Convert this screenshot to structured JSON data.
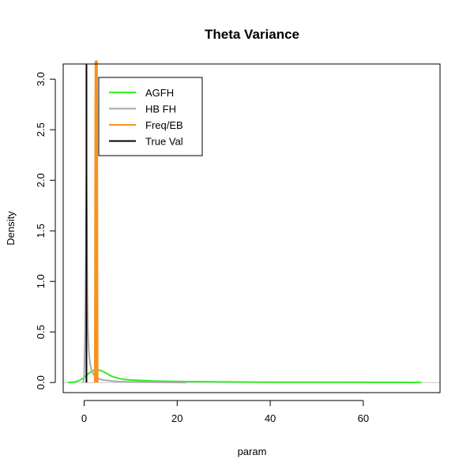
{
  "chart_data": {
    "type": "line",
    "title": "Theta Variance",
    "xlabel": "param",
    "ylabel": "Density",
    "xlim": [
      -4.5,
      76.5
    ],
    "ylim": [
      -0.1,
      3.15
    ],
    "xticks": [
      0,
      20,
      40,
      60
    ],
    "yticks": [
      0.0,
      0.5,
      1.0,
      1.5,
      2.0,
      2.5,
      3.0
    ],
    "xtick_labels": [
      "0",
      "20",
      "40",
      "60"
    ],
    "ytick_labels": [
      "0.0",
      "0.5",
      "1.0",
      "1.5",
      "2.0",
      "2.5",
      "3.0"
    ],
    "zero_line": 0,
    "legend": {
      "position": "top-left",
      "entries": [
        {
          "label": "AGFH",
          "color": "#33ee22"
        },
        {
          "label": "HB FH",
          "color": "#aaaaaa"
        },
        {
          "label": "Freq/EB",
          "color": "#f7931e"
        },
        {
          "label": "True Val",
          "color": "#000000"
        }
      ]
    },
    "series": [
      {
        "name": "AGFH",
        "color": "#33ee22",
        "x": [
          -3.5,
          -2,
          -1,
          0,
          1,
          2,
          3,
          4,
          5,
          6,
          8,
          10,
          15,
          20,
          30,
          40,
          50,
          60,
          72.5
        ],
        "y": [
          0.0,
          0.005,
          0.02,
          0.05,
          0.09,
          0.12,
          0.125,
          0.11,
          0.085,
          0.06,
          0.035,
          0.025,
          0.015,
          0.01,
          0.006,
          0.004,
          0.003,
          0.002,
          0.001
        ]
      },
      {
        "name": "HB FH",
        "color": "#aaaaaa",
        "x": [
          -0.2,
          0.0,
          0.2,
          0.4,
          0.5,
          0.6,
          0.7,
          0.8,
          0.9,
          1.0,
          1.1,
          1.3,
          1.6,
          2.0,
          2.5,
          3,
          4,
          5,
          7,
          10,
          15,
          22
        ],
        "y": [
          0.0,
          0.05,
          0.5,
          1.5,
          2.05,
          1.6,
          0.9,
          0.55,
          0.42,
          0.32,
          0.26,
          0.18,
          0.12,
          0.08,
          0.05,
          0.04,
          0.025,
          0.02,
          0.01,
          0.006,
          0.003,
          0.0
        ]
      },
      {
        "name": "Freq/EB",
        "color": "#f7931e",
        "x": [
          2.45,
          2.5,
          2.55,
          2.6,
          2.65,
          2.7,
          2.75
        ],
        "y": [
          0.0,
          1.0,
          2.6,
          3.2,
          2.6,
          1.0,
          0.0
        ]
      }
    ],
    "true_value": {
      "name": "True Val",
      "x": 0.5,
      "color": "#000000"
    }
  }
}
